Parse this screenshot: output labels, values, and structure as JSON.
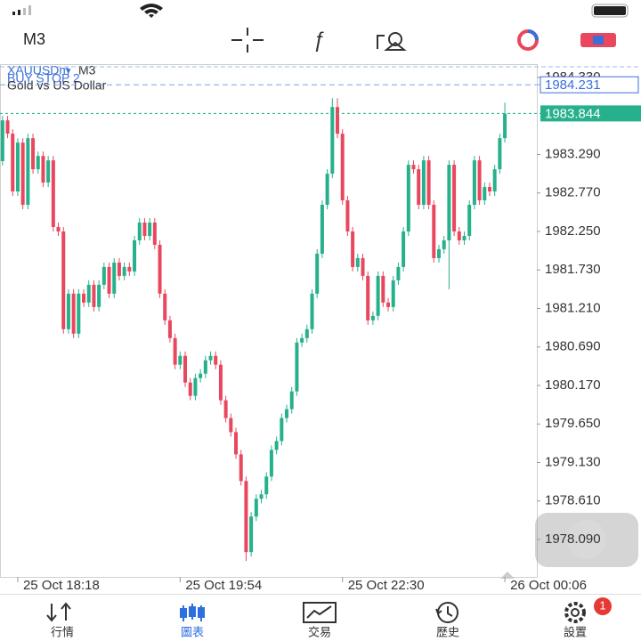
{
  "toolbar": {
    "timeframe": "M3"
  },
  "chart": {
    "symbol": "XAUUSDm",
    "timeframe": "M3",
    "description": "Gold vs US Dollar",
    "order_label": "BUY STOP 2",
    "order_price": 1984.231,
    "current_price": 1983.844,
    "up_color": "#26b08c",
    "down_color": "#e8475d",
    "ylim": [
      1977.585,
      1984.51
    ],
    "yticks": [
      {
        "value": 1984.33,
        "label": "1984.330"
      },
      {
        "value": 1983.29,
        "label": "1983.290"
      },
      {
        "value": 1982.77,
        "label": "1982.770"
      },
      {
        "value": 1982.25,
        "label": "1982.250"
      },
      {
        "value": 1981.73,
        "label": "1981.730"
      },
      {
        "value": 1981.21,
        "label": "1981.210"
      },
      {
        "value": 1980.69,
        "label": "1980.690"
      },
      {
        "value": 1980.17,
        "label": "1980.170"
      },
      {
        "value": 1979.65,
        "label": "1979.650"
      },
      {
        "value": 1979.13,
        "label": "1979.130"
      },
      {
        "value": 1978.61,
        "label": "1978.610"
      },
      {
        "value": 1978.09,
        "label": "1978.090"
      }
    ],
    "xlim": [
      -0.5,
      105.3
    ],
    "xticks": [
      {
        "value": 3,
        "label": "25 Oct 18:18"
      },
      {
        "value": 35,
        "label": "25 Oct 19:54"
      },
      {
        "value": 67,
        "label": "25 Oct 22:30"
      },
      {
        "value": 99,
        "label": "26 Oct 00:06"
      }
    ],
    "candles": {
      "open": [
        1983.2,
        1983.75,
        1983.57,
        1982.79,
        1983.45,
        1982.61,
        1983.51,
        1983.09,
        1983.27,
        1982.91,
        1983.21,
        1982.31,
        1982.25,
        1980.93,
        1981.41,
        1980.87,
        1981.41,
        1981.29,
        1981.53,
        1981.23,
        1981.53,
        1981.77,
        1981.41,
        1981.83,
        1981.65,
        1981.77,
        1981.71,
        1982.13,
        1982.37,
        1982.19,
        1982.37,
        1982.07,
        1981.41,
        1981.05,
        1980.81,
        1980.45,
        1980.57,
        1980.21,
        1980.03,
        1980.27,
        1980.33,
        1980.51,
        1980.57,
        1980.45,
        1979.97,
        1979.73,
        1979.54,
        1979.24,
        1978.88,
        1977.92,
        1978.4,
        1978.64,
        1978.7,
        1978.94,
        1979.3,
        1979.42,
        1979.73,
        1979.85,
        1980.09,
        1980.75,
        1980.81,
        1980.93,
        1981.41,
        1981.95,
        1982.61,
        1983.03,
        1983.93,
        1983.57,
        1982.67,
        1982.25,
        1981.77,
        1981.89,
        1981.65,
        1981.05,
        1981.11,
        1981.65,
        1981.29,
        1981.23,
        1981.59,
        1981.77,
        1982.25,
        1983.15,
        1983.09,
        1982.61,
        1983.21,
        1982.61,
        1981.89,
        1982.01,
        1982.13,
        1983.15,
        1982.25,
        1982.13,
        1982.19,
        1982.61,
        1983.21,
        1982.67,
        1982.85,
        1982.79,
        1983.09,
        1983.51
      ],
      "high": [
        1983.81,
        1983.81,
        1983.63,
        1983.51,
        1983.51,
        1983.57,
        1983.57,
        1983.33,
        1983.33,
        1983.27,
        1983.27,
        1982.37,
        1982.31,
        1981.47,
        1981.47,
        1981.47,
        1981.47,
        1981.59,
        1981.59,
        1981.59,
        1981.83,
        1981.83,
        1981.89,
        1981.89,
        1981.83,
        1981.83,
        1982.19,
        1982.43,
        1982.43,
        1982.43,
        1982.43,
        1982.13,
        1981.47,
        1981.11,
        1980.87,
        1980.63,
        1980.63,
        1980.27,
        1980.33,
        1980.39,
        1980.57,
        1980.63,
        1980.63,
        1980.51,
        1980.03,
        1979.79,
        1979.6,
        1979.3,
        1978.94,
        1978.46,
        1978.7,
        1978.76,
        1979.0,
        1979.36,
        1979.48,
        1979.79,
        1979.91,
        1980.15,
        1980.81,
        1980.87,
        1980.99,
        1981.47,
        1982.01,
        1982.67,
        1983.09,
        1984.05,
        1984.05,
        1983.63,
        1982.73,
        1982.31,
        1981.95,
        1981.95,
        1981.71,
        1981.17,
        1981.71,
        1981.71,
        1981.35,
        1981.65,
        1981.83,
        1982.31,
        1983.21,
        1983.21,
        1983.15,
        1983.27,
        1983.27,
        1982.67,
        1982.07,
        1982.19,
        1983.21,
        1983.21,
        1982.31,
        1982.25,
        1982.67,
        1983.27,
        1983.27,
        1982.91,
        1982.91,
        1983.15,
        1983.57,
        1983.99
      ],
      "low": [
        1983.14,
        1983.51,
        1982.73,
        1982.73,
        1982.55,
        1982.55,
        1983.03,
        1983.03,
        1982.85,
        1982.85,
        1982.25,
        1982.19,
        1980.87,
        1980.87,
        1980.81,
        1980.81,
        1981.23,
        1981.23,
        1981.17,
        1981.17,
        1981.47,
        1981.35,
        1981.35,
        1981.59,
        1981.59,
        1981.65,
        1981.65,
        1982.07,
        1982.13,
        1982.13,
        1982.01,
        1981.35,
        1980.99,
        1980.75,
        1980.39,
        1980.39,
        1980.15,
        1979.97,
        1979.97,
        1980.21,
        1980.27,
        1980.45,
        1980.39,
        1979.91,
        1979.67,
        1979.48,
        1979.18,
        1978.82,
        1977.8,
        1977.86,
        1978.34,
        1978.58,
        1978.64,
        1978.88,
        1979.24,
        1979.36,
        1979.67,
        1979.79,
        1980.03,
        1980.69,
        1980.75,
        1980.87,
        1981.35,
        1981.89,
        1982.55,
        1982.97,
        1983.51,
        1982.61,
        1982.19,
        1981.71,
        1981.71,
        1981.59,
        1980.99,
        1980.99,
        1981.05,
        1981.23,
        1981.17,
        1981.17,
        1981.53,
        1981.71,
        1982.19,
        1983.03,
        1982.55,
        1982.55,
        1982.55,
        1981.83,
        1981.83,
        1981.95,
        1981.47,
        1982.19,
        1982.07,
        1982.07,
        1982.13,
        1982.55,
        1982.61,
        1982.61,
        1982.73,
        1982.73,
        1983.03,
        1983.45
      ],
      "close": [
        1983.75,
        1983.57,
        1982.79,
        1983.45,
        1982.61,
        1983.51,
        1983.09,
        1983.27,
        1982.91,
        1983.21,
        1982.31,
        1982.25,
        1980.93,
        1981.41,
        1980.87,
        1981.41,
        1981.29,
        1981.53,
        1981.23,
        1981.53,
        1981.77,
        1981.41,
        1981.83,
        1981.65,
        1981.77,
        1981.71,
        1982.13,
        1982.37,
        1982.19,
        1982.37,
        1982.07,
        1981.41,
        1981.05,
        1980.81,
        1980.45,
        1980.57,
        1980.21,
        1980.03,
        1980.27,
        1980.33,
        1980.51,
        1980.57,
        1980.45,
        1979.97,
        1979.73,
        1979.54,
        1979.24,
        1978.88,
        1977.92,
        1978.4,
        1978.64,
        1978.7,
        1978.94,
        1979.3,
        1979.42,
        1979.73,
        1979.85,
        1980.09,
        1980.75,
        1980.81,
        1980.93,
        1981.41,
        1981.95,
        1982.61,
        1983.03,
        1983.93,
        1983.57,
        1982.67,
        1982.25,
        1981.77,
        1981.89,
        1981.65,
        1981.05,
        1981.11,
        1981.65,
        1981.29,
        1981.23,
        1981.59,
        1981.77,
        1982.25,
        1983.15,
        1983.09,
        1982.61,
        1983.21,
        1982.61,
        1981.89,
        1982.01,
        1982.13,
        1983.15,
        1982.25,
        1982.13,
        1982.19,
        1982.61,
        1983.21,
        1982.67,
        1982.85,
        1982.79,
        1983.09,
        1983.51,
        1983.84
      ]
    }
  },
  "tabs": [
    "行情",
    "圖表",
    "交易",
    "歷史",
    "設置"
  ],
  "selected_tab": "圖表",
  "settings_badge": 1
}
